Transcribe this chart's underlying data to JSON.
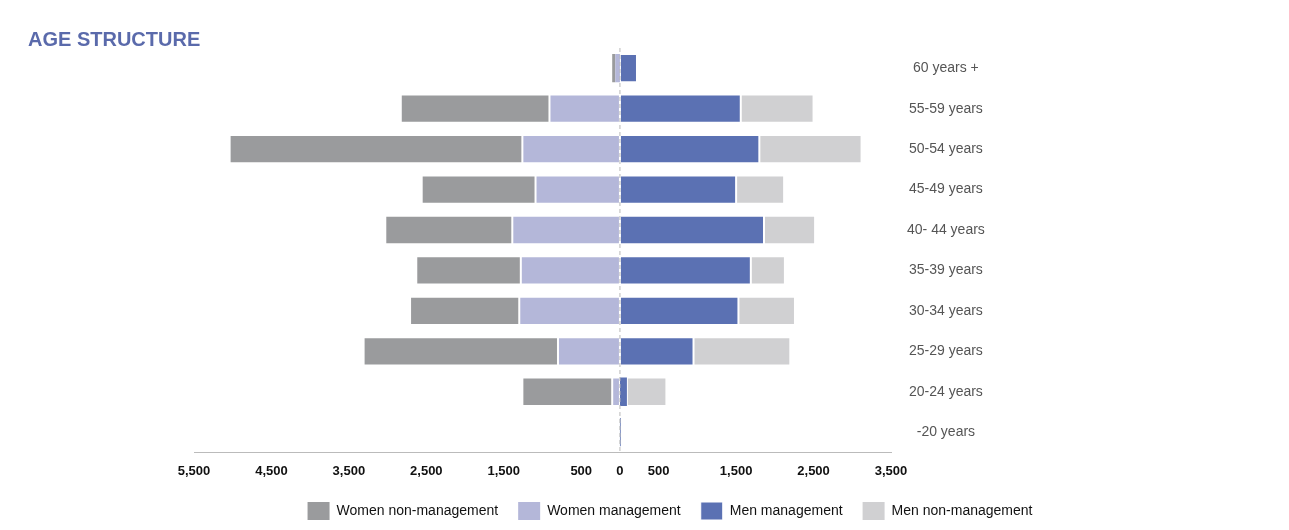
{
  "chart_data": {
    "type": "bar",
    "title": "AGE STRUCTURE",
    "orientation": "horizontal",
    "stacked": true,
    "categories": [
      "60 years +",
      "55-59 years",
      "50-54 years",
      "45-49 years",
      "40- 44 years",
      "35-39 years",
      "30-34 years",
      "25-29 years",
      "20-24 years",
      "-20 years"
    ],
    "series": [
      {
        "name": "Women management",
        "color": "#b4b7d9",
        "values": [
          -60,
          -910,
          -1260,
          -1090,
          -1390,
          -1280,
          -1300,
          -800,
          -100,
          null
        ]
      },
      {
        "name": "Women non-management",
        "color": "#9a9b9d",
        "values": [
          -40,
          -1920,
          -3780,
          -1470,
          -1640,
          -1350,
          -1410,
          -2510,
          -1160,
          null
        ]
      },
      {
        "name": "Men management",
        "color": "#5b71b3",
        "values": [
          220,
          1560,
          1800,
          1500,
          1860,
          1690,
          1530,
          950,
          90,
          10
        ]
      },
      {
        "name": "Men non-management",
        "color": "#d0d0d2",
        "values": [
          null,
          940,
          1320,
          620,
          660,
          440,
          730,
          1250,
          510,
          null
        ]
      }
    ],
    "xlim": [
      -5500,
      3500
    ],
    "xticks": [
      {
        "value": -5500,
        "label": "5,500"
      },
      {
        "value": -4500,
        "label": "4,500"
      },
      {
        "value": -3500,
        "label": "3,500"
      },
      {
        "value": -2500,
        "label": "2,500"
      },
      {
        "value": -1500,
        "label": "1,500"
      },
      {
        "value": -500,
        "label": "500"
      },
      0,
      500,
      {
        "value": 1500,
        "label": "1,500"
      },
      {
        "value": 2500,
        "label": "2,500"
      },
      {
        "value": 3500,
        "label": "3,500"
      }
    ],
    "ref_lines": [
      {
        "axis": "x",
        "value": 0,
        "color": "#b8b8b8",
        "line_style": "dashed"
      }
    ],
    "grid": false,
    "legend": "bottom"
  }
}
